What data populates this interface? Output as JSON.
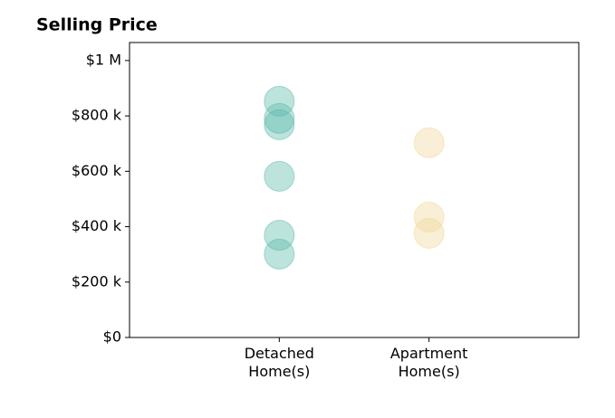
{
  "chart_data": {
    "type": "scatter",
    "title": "Selling Price",
    "categories": [
      "Detached\nHome(s)",
      "Apartment\nHome(s)"
    ],
    "colors": [
      "#5bb8aa",
      "#f0d898"
    ],
    "values": [
      [
        853000,
        791000,
        768000,
        582000,
        369000,
        301000
      ],
      [
        703000,
        435000,
        376000
      ]
    ],
    "ylim": [
      0,
      1065000
    ],
    "yticks": [
      {
        "value": 0,
        "label": "$0"
      },
      {
        "value": 200000,
        "label": "$200 k"
      },
      {
        "value": 400000,
        "label": "$400 k"
      },
      {
        "value": 600000,
        "label": "$600 k"
      },
      {
        "value": 800000,
        "label": "$800 k"
      },
      {
        "value": 1000000,
        "label": "$1 M"
      }
    ]
  }
}
